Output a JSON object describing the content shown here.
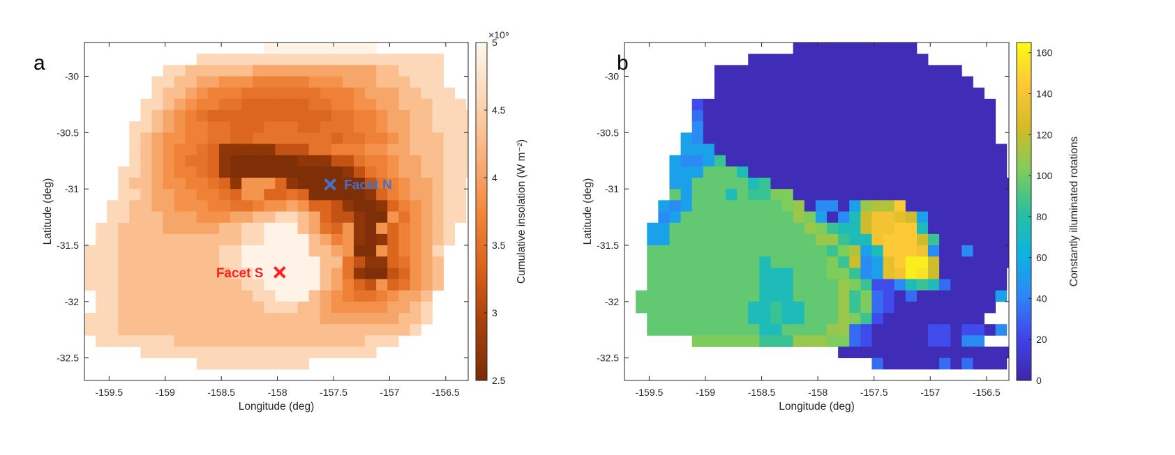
{
  "chart_data": [
    {
      "panel_label": "a",
      "type": "heatmap",
      "xlabel": "Longitude (deg)",
      "ylabel": "Latitude (deg)",
      "xlim": [
        -159.72,
        -156.3
      ],
      "ylim": [
        -32.7,
        -29.7
      ],
      "xticks": [
        -159.5,
        -159,
        -158.5,
        -158,
        -157.5,
        -157,
        -156.5
      ],
      "yticks": [
        -32.5,
        -32,
        -31.5,
        -31,
        -30.5,
        -30
      ],
      "xtick_labels": [
        "-159.5",
        "-159",
        "-158.5",
        "-158",
        "-157.5",
        "-157",
        "-156.5"
      ],
      "ytick_labels": [
        "-32.5",
        "-32",
        "-31.5",
        "-31",
        "-30.5",
        "-30"
      ],
      "colorbar": {
        "label": "Cumulative insolation (W m⁻²)",
        "multiplier": "×10⁹",
        "range": [
          2.5,
          5
        ],
        "ticks": [
          2.5,
          3,
          3.5,
          4,
          4.5,
          5
        ],
        "tick_labels": [
          "2.5",
          "3",
          "3.5",
          "4",
          "4.5",
          "5"
        ],
        "colormap": [
          "#7a2c06",
          "#a6410c",
          "#d9621a",
          "#f2883c",
          "#f9b27c",
          "#fcd7b6",
          "#fff6ee"
        ]
      },
      "markers": [
        {
          "label": "Facet N",
          "lon": -157.53,
          "lat": -30.96,
          "color": "#4472c4"
        },
        {
          "label": "Facet S",
          "lon": -157.98,
          "lat": -31.74,
          "color": "#ff1f1f"
        }
      ],
      "grid": {
        "lon_min": -159.72,
        "lat_max": -29.7,
        "cell_deg": 0.1
      },
      "value_rows": [
        "________________..........__________",
        "__________aaaaaaaaaaaaaaaaaaaaaa____",
        "_______aabbbbbbcccccccccccbbaaaa____",
        "______aabbccdddeeeeedddcccbbbaaa____",
        "______abbcdeeefffffffeeedcccbbaaa___",
        "_____aabcdeeffggggggffeeddccbbbaaa__",
        "_____abcdefgggggggggggffeedccbbaaaa_",
        "____aabcdeeffgggfffggfffeedccbbaaaaa",
        "____abcddeeffggfffffffgffeedcbbbaaaa",
        "____abcdeefgjjjjjiiiffeeeddccbbbaaaa",
        "____abcdeffgjkkkkkkjjjiifeedccbbaaaa",
        "___aabcdeefgjkkkkkkkkkkjifedccbbaaa_",
        "___abbcddeefgjhhhgjkkkkkkifedccbaa__",
        "___aabccddeefghhggfgkkkkkjgedccbaa__",
        "__aabbccdddeeffeddcdggijkkjgedcbaa__",
        "__aabbbcccdddccbbaabcgiijkkhfdcbaa__",
        "_aabbbbcccccbbaa...bcfghjkhgedcba___",
        "_aabbbbbbbbbbbaa....bcehjkjgedcba___",
        "aaabbbbbbbbbaa......bbchkkhgedca____",
        "aaabbbbbbbbbaa.......bbfijjgfdcb____",
        "aaabbbbbbbbbbaa......bcfjkkigdcb____",
        "aaabbbbbbbbbbbaa.....bcegihgfdcb____",
        "_aabbbbbbbbbbbbaa...bcdeffedccb_____",
        "_aabbbbbbbbbbbbbaaabbcdddddccba_____",
        "aaabbbbbbbbbbbbbbbbbbcccccccbba_____",
        "aaabbbbbbbbbbbbbbbbbbbbbbbbbba______",
        "_aaaaaaabbbbbbbbbbbbbbbbbaaa________",
        "_____aaaaaaaaaaaaaaaaaaaaa__________",
        "__________aaaaaaaaaa________________",
        "____________________________________"
      ]
    },
    {
      "panel_label": "b",
      "type": "heatmap",
      "xlabel": "Longitude (deg)",
      "ylabel": "Latitude (deg)",
      "xlim": [
        -159.72,
        -156.3
      ],
      "ylim": [
        -32.7,
        -29.7
      ],
      "xticks": [
        -159.5,
        -159,
        -158.5,
        -158,
        -157.5,
        -157,
        -156.5
      ],
      "yticks": [
        -32.5,
        -32,
        -31.5,
        -31,
        -30.5,
        -30
      ],
      "xtick_labels": [
        "-159.5",
        "-159",
        "-158.5",
        "-158",
        "-157.5",
        "-157",
        "-156.5"
      ],
      "ytick_labels": [
        "-32.5",
        "-32",
        "-31.5",
        "-31",
        "-30.5",
        "-30"
      ],
      "colorbar": {
        "label": "Constantly illuminated rotations",
        "range": [
          0,
          165
        ],
        "ticks": [
          0,
          20,
          40,
          60,
          80,
          100,
          120,
          140,
          160
        ],
        "tick_labels": [
          "0",
          "20",
          "40",
          "60",
          "80",
          "100",
          "120",
          "140",
          "160"
        ],
        "colormap": [
          "#3e26a8",
          "#4143e8",
          "#2e87f7",
          "#0cb4e0",
          "#2bc09e",
          "#81cc59",
          "#d4bb27",
          "#fec737",
          "#f9fb15"
        ]
      },
      "grid": {
        "lon_min": -159.72,
        "lat_max": -29.7,
        "cell_deg": 0.1
      },
      "value_rows": [
        "_______________...........__________",
        "___________................_________",
        "________......................_______",
        "________.......................______",
        "________........................____",
        "______a..........................___",
        "______b..........................___",
        "______c..........................___",
        "_____dc..........................___",
        "_____ddd..........................__",
        "____dccdg.........................__",
        "____dddeeef.......................__",
        "____ddeeeeefg.......................",
        "____edeeefegghh.....................",
        "___dcdeeeeeeeehi.cc.dijjn...........",
        "___cdeeeeeeeeeeihd.cfkmmlkd.........",
        "__ddeeeeeeeeeeeeihgffkmmnnf........__",
        "__ddeeeeeeeeeeeeeiigffmnnnkg.......__",
        "__eeeeeeeeeeeeeeeeghjdfnnnmc..c....__",
        "__eeeeeeeeeefeeeeehgkcdlnppk........_",
        "__eeeeeeeeeefffeeehhgcdlmpok......___",
        "__eeeeeeeeeefffeeeeihgaacfgfb.....___",
        "_eeeeeeeeeeefffeeeeighba.b.......d___",
        "_eeeeeeeeeeffgffeeeighba.........____",
        "__eeeeeeeeeffgffeeeihga.........____",
        "__eeeeeeeeeeffeeeeiiba.....aa.aa.c____",
        "______hhhhhhgggiiihhba.....aa.cc______",
        "___________________....................",
        "______________________b.....b.b...____",
        "____________________________________"
      ]
    }
  ],
  "panel_a_label": "a",
  "panel_b_label": "b",
  "panel_a_colorbar_exponent": "×10⁹",
  "marker_n_label": "Facet N",
  "marker_s_label": "Facet S"
}
